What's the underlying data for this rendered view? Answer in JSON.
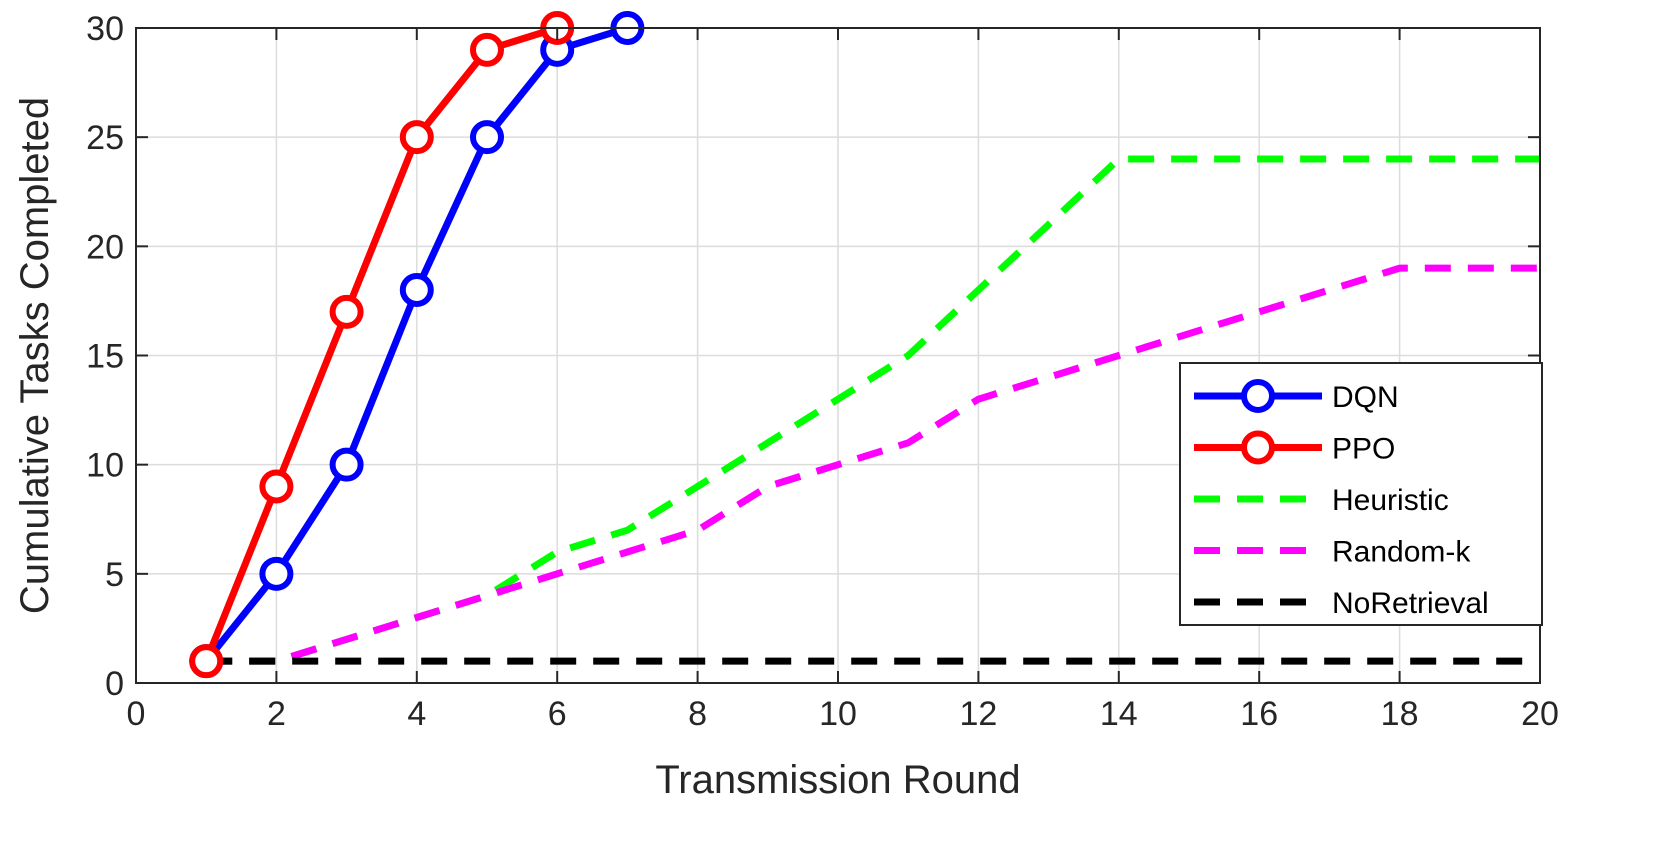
{
  "chart_data": {
    "type": "line",
    "title": "",
    "xlabel": "Transmission Round",
    "ylabel": "Cumulative Tasks Completed",
    "xlim": [
      0,
      20
    ],
    "ylim": [
      0,
      30
    ],
    "xticks": [
      0,
      2,
      4,
      6,
      8,
      10,
      12,
      14,
      16,
      18,
      20
    ],
    "yticks": [
      0,
      5,
      10,
      15,
      20,
      25,
      30
    ],
    "grid": true,
    "legend_position": "right",
    "series": [
      {
        "name": "DQN",
        "color": "#0000ff",
        "style": "solid",
        "marker": "circle",
        "x": [
          1,
          2,
          3,
          4,
          5,
          6,
          7
        ],
        "y": [
          1,
          5,
          10,
          18,
          25,
          29,
          30
        ]
      },
      {
        "name": "PPO",
        "color": "#ff0000",
        "style": "solid",
        "marker": "circle",
        "x": [
          1,
          2,
          3,
          4,
          5,
          6
        ],
        "y": [
          1,
          9,
          17,
          25,
          29,
          30
        ]
      },
      {
        "name": "Heuristic",
        "color": "#00ff00",
        "style": "dashed",
        "marker": "none",
        "x": [
          1,
          2,
          3,
          4,
          5,
          6,
          7,
          8,
          9,
          10,
          11,
          12,
          13,
          14,
          15,
          16,
          17,
          18,
          19,
          20
        ],
        "y": [
          1,
          1,
          2,
          3,
          4,
          6,
          7,
          9,
          11,
          13,
          15,
          18,
          21,
          24,
          24,
          24,
          24,
          24,
          24,
          24
        ]
      },
      {
        "name": "Random-k",
        "color": "#ff00ff",
        "style": "dashed",
        "marker": "none",
        "x": [
          1,
          2,
          3,
          4,
          5,
          6,
          7,
          8,
          9,
          10,
          11,
          12,
          13,
          14,
          15,
          16,
          17,
          18,
          19,
          20
        ],
        "y": [
          1,
          1,
          2,
          3,
          4,
          5,
          6,
          7,
          9,
          10,
          11,
          13,
          14,
          15,
          16,
          17,
          18,
          19,
          19,
          19
        ]
      },
      {
        "name": "NoRetrieval",
        "color": "#000000",
        "style": "dashed",
        "marker": "none",
        "x": [
          1,
          2,
          3,
          4,
          5,
          6,
          7,
          8,
          9,
          10,
          11,
          12,
          13,
          14,
          15,
          16,
          17,
          18,
          19,
          20
        ],
        "y": [
          1,
          1,
          1,
          1,
          1,
          1,
          1,
          1,
          1,
          1,
          1,
          1,
          1,
          1,
          1,
          1,
          1,
          1,
          1,
          1
        ]
      }
    ]
  }
}
